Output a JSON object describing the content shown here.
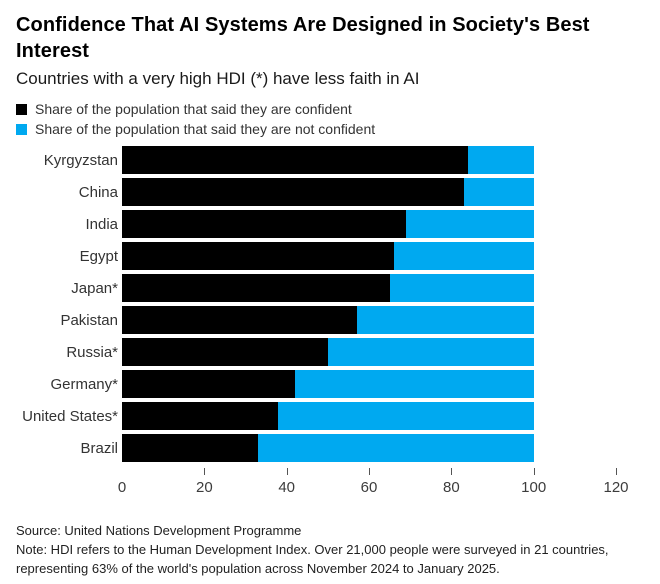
{
  "header": {
    "title": "Confidence That AI Systems Are Designed in Society's Best Interest",
    "subtitle": "Countries with a very high HDI (*) have less faith in AI"
  },
  "colors": {
    "confident": "#000000",
    "not_confident": "#00a9f0",
    "background": "#ffffff"
  },
  "legend": [
    {
      "label": "Share of the population that said they are confident",
      "color": "#000000"
    },
    {
      "label": "Share of the population that said they are not confident",
      "color": "#00a9f0"
    }
  ],
  "chart_data": {
    "type": "bar",
    "orientation": "horizontal",
    "stacked": true,
    "title": "Confidence That AI Systems Are Designed in Society's Best Interest",
    "subtitle": "Countries with a very high HDI (*) have less faith in AI",
    "categories": [
      "Kyrgyzstan",
      "China",
      "India",
      "Egypt",
      "Japan*",
      "Pakistan",
      "Russia*",
      "Germany*",
      "United States*",
      "Brazil"
    ],
    "series": [
      {
        "name": "Share of the population that said they are confident",
        "color": "#000000",
        "values": [
          84,
          83,
          69,
          66,
          65,
          57,
          50,
          42,
          38,
          33
        ]
      },
      {
        "name": "Share of the population that said they are not confident",
        "color": "#00a9f0",
        "values": [
          16,
          17,
          31,
          34,
          35,
          43,
          50,
          58,
          62,
          67
        ]
      }
    ],
    "xlabel": "",
    "ylabel": "",
    "xlim": [
      0,
      120
    ],
    "xticks": [
      0,
      20,
      40,
      60,
      80,
      100,
      120
    ],
    "grid": false,
    "legend_position": "top-left",
    "units": "% of population"
  },
  "footer": {
    "source": "Source: United Nations Development Programme",
    "note_lines": [
      "Note: HDI refers to the Human Development Index. Over 21,000 people were surveyed in 21 countries,",
      "representing 63% of the world's population across November 2024 to January 2025."
    ]
  }
}
